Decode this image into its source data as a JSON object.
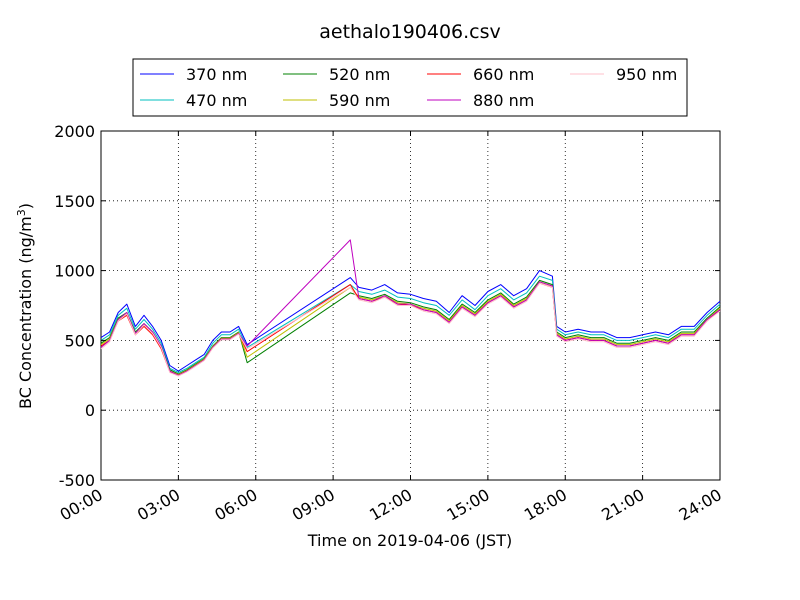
{
  "chart_data": {
    "type": "line",
    "title": "aethalo190406.csv",
    "xlabel": "Time on 2019-04-06 (JST)",
    "ylabel": "BC Concentration (ng/m",
    "ylabel_superscript": "3",
    "ylabel_suffix": ")",
    "xlim": [
      "00:00",
      "24:00"
    ],
    "ylim": [
      -500,
      2000
    ],
    "grid": true,
    "legend_position": "top",
    "x_ticks": [
      "00:00",
      "03:00",
      "06:00",
      "09:00",
      "12:00",
      "15:00",
      "18:00",
      "21:00",
      "24:00"
    ],
    "y_ticks": [
      -500,
      0,
      500,
      1000,
      1500,
      2000
    ],
    "series": [
      {
        "name": "370 nm",
        "color": "#0000ff",
        "x": [
          "00:00",
          "00:20",
          "00:40",
          "01:00",
          "01:20",
          "01:40",
          "02:00",
          "02:20",
          "02:40",
          "03:00",
          "03:20",
          "03:40",
          "04:00",
          "04:20",
          "04:40",
          "05:00",
          "05:20",
          "05:40",
          "09:40",
          "10:00",
          "10:30",
          "11:00",
          "11:30",
          "12:00",
          "12:30",
          "13:00",
          "13:30",
          "14:00",
          "14:30",
          "15:00",
          "15:30",
          "16:00",
          "16:30",
          "17:00",
          "17:30",
          "17:40",
          "18:00",
          "18:30",
          "19:00",
          "19:30",
          "20:00",
          "20:30",
          "21:00",
          "21:30",
          "22:00",
          "22:30",
          "23:00",
          "23:30",
          "24:00"
        ],
        "values": [
          520,
          560,
          700,
          760,
          600,
          680,
          600,
          500,
          320,
          280,
          320,
          360,
          400,
          500,
          560,
          560,
          600,
          470,
          950,
          880,
          860,
          900,
          840,
          830,
          800,
          780,
          700,
          820,
          750,
          850,
          900,
          820,
          870,
          1000,
          960,
          600,
          560,
          580,
          560,
          560,
          520,
          520,
          540,
          560,
          540,
          600,
          600,
          700,
          780
        ]
      },
      {
        "name": "470 nm",
        "color": "#00bfbf",
        "x": [
          "00:00",
          "00:20",
          "00:40",
          "01:00",
          "01:20",
          "01:40",
          "02:00",
          "02:20",
          "02:40",
          "03:00",
          "03:20",
          "03:40",
          "04:00",
          "04:20",
          "04:40",
          "05:00",
          "05:20",
          "05:40",
          "09:40",
          "10:00",
          "10:30",
          "11:00",
          "11:30",
          "12:00",
          "12:30",
          "13:00",
          "13:30",
          "14:00",
          "14:30",
          "15:00",
          "15:30",
          "16:00",
          "16:30",
          "17:00",
          "17:30",
          "17:40",
          "18:00",
          "18:30",
          "19:00",
          "19:30",
          "20:00",
          "20:30",
          "21:00",
          "21:30",
          "22:00",
          "22:30",
          "23:00",
          "23:30",
          "24:00"
        ],
        "values": [
          500,
          540,
          680,
          730,
          580,
          650,
          580,
          480,
          300,
          270,
          300,
          340,
          380,
          480,
          540,
          540,
          580,
          450,
          900,
          850,
          830,
          860,
          810,
          800,
          770,
          750,
          680,
          790,
          720,
          820,
          870,
          790,
          840,
          960,
          930,
          580,
          540,
          560,
          540,
          540,
          500,
          500,
          520,
          540,
          520,
          580,
          580,
          680,
          760
        ]
      },
      {
        "name": "520 nm",
        "color": "#008000",
        "x": [
          "00:00",
          "00:20",
          "00:40",
          "01:00",
          "01:20",
          "01:40",
          "02:00",
          "02:20",
          "02:40",
          "03:00",
          "03:20",
          "03:40",
          "04:00",
          "04:20",
          "04:40",
          "05:00",
          "05:20",
          "05:40",
          "09:40",
          "10:00",
          "10:30",
          "11:00",
          "11:30",
          "12:00",
          "12:30",
          "13:00",
          "13:30",
          "14:00",
          "14:30",
          "15:00",
          "15:30",
          "16:00",
          "16:30",
          "17:00",
          "17:30",
          "17:40",
          "18:00",
          "18:30",
          "19:00",
          "19:30",
          "20:00",
          "20:30",
          "21:00",
          "21:30",
          "22:00",
          "22:30",
          "23:00",
          "23:30",
          "24:00"
        ],
        "values": [
          480,
          520,
          660,
          700,
          560,
          620,
          560,
          460,
          290,
          260,
          290,
          330,
          370,
          460,
          520,
          520,
          560,
          340,
          840,
          820,
          800,
          830,
          780,
          770,
          740,
          720,
          650,
          760,
          700,
          790,
          840,
          760,
          810,
          930,
          900,
          560,
          520,
          540,
          520,
          520,
          480,
          480,
          500,
          520,
          500,
          560,
          560,
          660,
          740
        ]
      },
      {
        "name": "590 nm",
        "color": "#bfbf00",
        "x": [
          "00:00",
          "00:20",
          "00:40",
          "01:00",
          "01:20",
          "01:40",
          "02:00",
          "02:20",
          "02:40",
          "03:00",
          "03:20",
          "03:40",
          "04:00",
          "04:20",
          "04:40",
          "05:00",
          "05:20",
          "05:40",
          "09:40",
          "10:00",
          "10:30",
          "11:00",
          "11:30",
          "12:00",
          "12:30",
          "13:00",
          "13:30",
          "14:00",
          "14:30",
          "15:00",
          "15:30",
          "16:00",
          "16:30",
          "17:00",
          "17:30",
          "17:40",
          "18:00",
          "18:30",
          "19:00",
          "19:30",
          "20:00",
          "20:30",
          "21:00",
          "21:30",
          "22:00",
          "22:30",
          "23:00",
          "23:30",
          "24:00"
        ],
        "values": [
          470,
          510,
          650,
          690,
          550,
          610,
          550,
          450,
          280,
          255,
          285,
          325,
          365,
          455,
          515,
          515,
          555,
          380,
          880,
          810,
          790,
          820,
          770,
          760,
          730,
          710,
          640,
          750,
          690,
          780,
          830,
          750,
          800,
          920,
          890,
          550,
          510,
          530,
          510,
          510,
          470,
          470,
          490,
          510,
          490,
          550,
          550,
          650,
          730
        ]
      },
      {
        "name": "660 nm",
        "color": "#ff0000",
        "x": [
          "00:00",
          "00:20",
          "00:40",
          "01:00",
          "01:20",
          "01:40",
          "02:00",
          "02:20",
          "02:40",
          "03:00",
          "03:20",
          "03:40",
          "04:00",
          "04:20",
          "04:40",
          "05:00",
          "05:20",
          "05:40",
          "09:40",
          "10:00",
          "10:30",
          "11:00",
          "11:30",
          "12:00",
          "12:30",
          "13:00",
          "13:30",
          "14:00",
          "14:30",
          "15:00",
          "15:30",
          "16:00",
          "16:30",
          "17:00",
          "17:30",
          "17:40",
          "18:00",
          "18:30",
          "19:00",
          "19:30",
          "20:00",
          "20:30",
          "21:00",
          "21:30",
          "22:00",
          "22:30",
          "23:00",
          "23:30",
          "24:00"
        ],
        "values": [
          460,
          500,
          640,
          680,
          540,
          600,
          540,
          440,
          275,
          250,
          280,
          320,
          360,
          450,
          510,
          510,
          550,
          420,
          900,
          800,
          780,
          810,
          760,
          750,
          720,
          700,
          630,
          740,
          680,
          770,
          820,
          740,
          790,
          910,
          880,
          540,
          500,
          520,
          500,
          500,
          460,
          460,
          480,
          500,
          480,
          540,
          540,
          640,
          720
        ]
      },
      {
        "name": "880 nm",
        "color": "#bf00bf",
        "x": [
          "00:00",
          "00:20",
          "00:40",
          "01:00",
          "01:20",
          "01:40",
          "02:00",
          "02:20",
          "02:40",
          "03:00",
          "03:20",
          "03:40",
          "04:00",
          "04:20",
          "04:40",
          "05:00",
          "05:20",
          "05:40",
          "09:40",
          "10:00",
          "10:30",
          "11:00",
          "11:30",
          "12:00",
          "12:30",
          "13:00",
          "13:30",
          "14:00",
          "14:30",
          "15:00",
          "15:30",
          "16:00",
          "16:30",
          "17:00",
          "17:30",
          "17:40",
          "18:00",
          "18:30",
          "19:00",
          "19:30",
          "20:00",
          "20:30",
          "21:00",
          "21:30",
          "22:00",
          "22:30",
          "23:00",
          "23:30",
          "24:00"
        ],
        "values": [
          450,
          500,
          650,
          700,
          550,
          620,
          560,
          460,
          280,
          250,
          280,
          320,
          360,
          450,
          510,
          510,
          550,
          460,
          1220,
          800,
          780,
          820,
          760,
          760,
          720,
          700,
          630,
          740,
          680,
          770,
          820,
          740,
          790,
          920,
          890,
          540,
          500,
          520,
          500,
          500,
          460,
          460,
          480,
          500,
          480,
          540,
          540,
          650,
          720
        ]
      },
      {
        "name": "950 nm",
        "color": "#ffc0cb",
        "x": [
          "00:00",
          "00:20",
          "00:40",
          "01:00",
          "01:20",
          "01:40",
          "02:00",
          "02:20",
          "02:40",
          "03:00",
          "03:20",
          "03:40",
          "04:00",
          "04:20",
          "04:40",
          "05:00",
          "05:20",
          "05:40",
          "09:40",
          "10:00",
          "10:30",
          "11:00",
          "11:30",
          "12:00",
          "12:30",
          "13:00",
          "13:30",
          "14:00",
          "14:30",
          "15:00",
          "15:30",
          "16:00",
          "16:30",
          "17:00",
          "17:30",
          "17:40",
          "18:00",
          "18:30",
          "19:00",
          "19:30",
          "20:00",
          "20:30",
          "21:00",
          "21:30",
          "22:00",
          "22:30",
          "23:00",
          "23:30",
          "24:00"
        ],
        "values": [
          440,
          490,
          640,
          690,
          540,
          610,
          550,
          450,
          270,
          245,
          275,
          315,
          355,
          445,
          505,
          505,
          545,
          440,
          880,
          790,
          770,
          810,
          750,
          750,
          710,
          690,
          620,
          730,
          670,
          760,
          810,
          730,
          780,
          910,
          880,
          530,
          490,
          510,
          490,
          490,
          450,
          450,
          470,
          490,
          470,
          530,
          530,
          640,
          710
        ]
      }
    ]
  }
}
